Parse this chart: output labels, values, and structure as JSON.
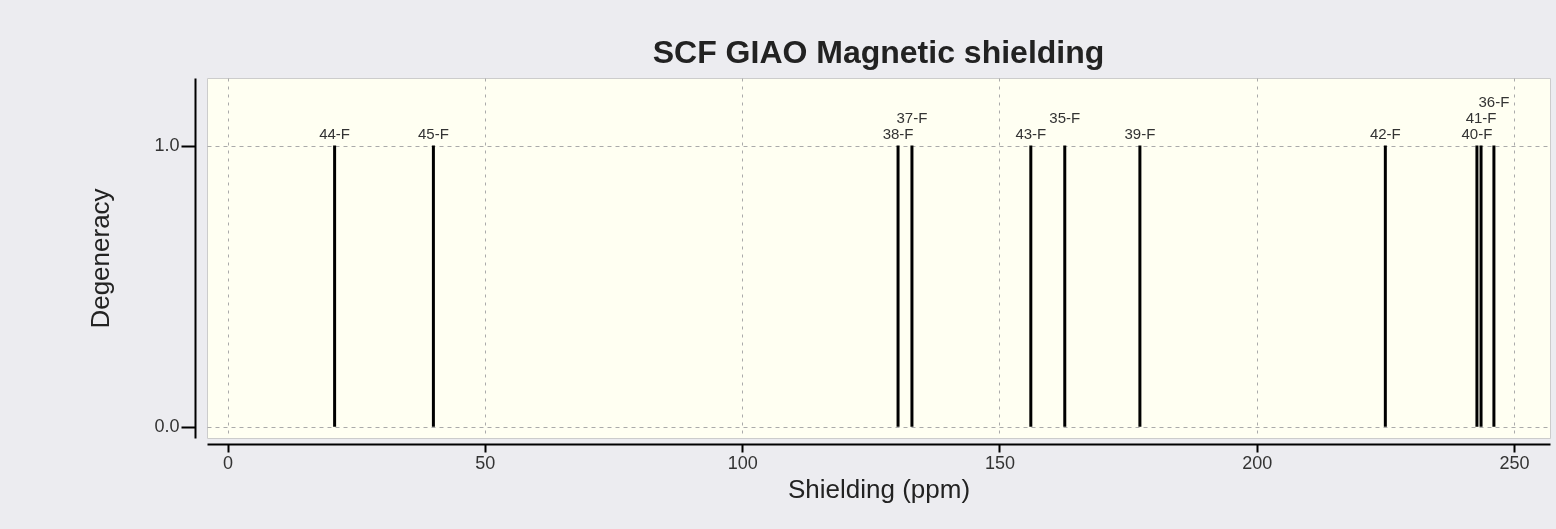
{
  "chart_data": {
    "type": "bar",
    "title": "SCF GIAO Magnetic shielding",
    "xlabel": "Shielding (ppm)",
    "ylabel": "Degeneracy",
    "x": [
      20.8,
      40.0,
      130.3,
      133.0,
      156.1,
      162.7,
      177.3,
      225.0,
      242.8,
      243.6,
      246.1
    ],
    "values": [
      1,
      1,
      1,
      1,
      1,
      1,
      1,
      1,
      1,
      1,
      1
    ],
    "annotations": [
      {
        "text": "44-F",
        "x": 20.8,
        "y": 1
      },
      {
        "text": "45-F",
        "x": 40.0,
        "y": 1
      },
      {
        "text": "38-F",
        "x": 130.3,
        "y": 1
      },
      {
        "text": "37-F",
        "x": 133.0,
        "y": 1
      },
      {
        "text": "43-F",
        "x": 156.1,
        "y": 1
      },
      {
        "text": "35-F",
        "x": 162.7,
        "y": 1
      },
      {
        "text": "39-F",
        "x": 177.3,
        "y": 1
      },
      {
        "text": "42-F",
        "x": 225.0,
        "y": 1
      },
      {
        "text": "40-F",
        "x": 242.8,
        "y": 1
      },
      {
        "text": "41-F",
        "x": 243.6,
        "y": 1
      },
      {
        "text": "36-F",
        "x": 246.1,
        "y": 1
      }
    ],
    "color": "#000000",
    "xlim": [
      -4,
      257
    ],
    "xticks": [
      0,
      50,
      100,
      150,
      200,
      250
    ],
    "ylim": [
      -0.04,
      1.24
    ],
    "yticks": [
      {
        "value": 0,
        "label": "0.0"
      },
      {
        "value": 1,
        "label": "1.0"
      }
    ],
    "grid": true
  }
}
